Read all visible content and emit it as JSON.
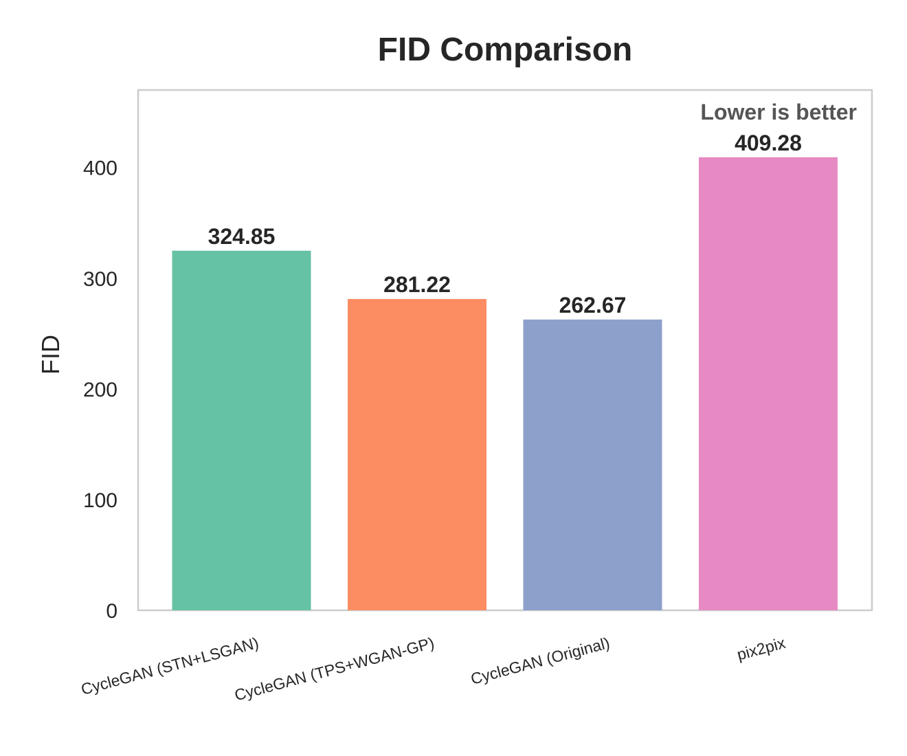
{
  "chart_data": {
    "type": "bar",
    "title": "FID Comparison",
    "xlabel": "",
    "ylabel": "FID",
    "ylim": [
      0,
      470
    ],
    "yticks": [
      0,
      100,
      200,
      300,
      400
    ],
    "grid": false,
    "categories": [
      "CycleGAN (STN+LSGAN)",
      "CycleGAN (TPS+WGAN-GP)",
      "CycleGAN (Original)",
      "pix2pix"
    ],
    "values": [
      324.85,
      281.22,
      262.67,
      409.28
    ],
    "value_labels": [
      "324.85",
      "281.22",
      "262.67",
      "409.28"
    ],
    "colors": [
      "#66c2a5",
      "#fc8d62",
      "#8da0cb",
      "#e78ac3"
    ],
    "annotation": "Lower is better"
  }
}
